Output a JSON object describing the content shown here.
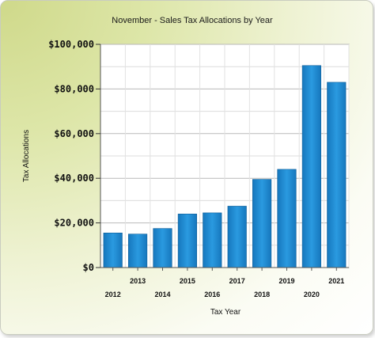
{
  "chart_data": {
    "type": "bar",
    "title": "November - Sales Tax Allocations by Year",
    "xlabel": "Tax Year",
    "ylabel": "Tax Allocations",
    "categories": [
      "2012",
      "2013",
      "2014",
      "2015",
      "2016",
      "2017",
      "2018",
      "2019",
      "2020",
      "2021"
    ],
    "values": [
      15500,
      15000,
      17500,
      24000,
      24500,
      27500,
      39500,
      44000,
      90500,
      83000
    ],
    "ylim": [
      0,
      100000
    ],
    "yticks": [
      0,
      20000,
      40000,
      60000,
      80000,
      100000
    ],
    "ytick_labels": [
      "$0",
      "$20,000",
      "$40,000",
      "$60,000",
      "$80,000",
      "$100,000"
    ],
    "grid": true,
    "legend": "none",
    "bar_color": "#1f8fd6"
  }
}
